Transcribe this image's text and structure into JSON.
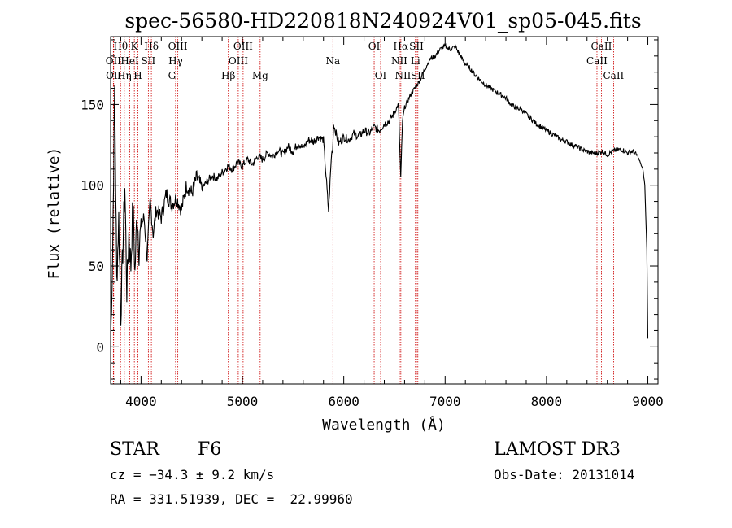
{
  "chart_data": {
    "type": "line",
    "title": "spec-56580-HD220818N240924V01_sp05-045.fits",
    "xlabel": "Wavelength (Å)",
    "ylabel": "Flux (relative)",
    "xlim": [
      3700,
      9100
    ],
    "ylim": [
      -23,
      192
    ],
    "x_ticks": [
      4000,
      5000,
      6000,
      7000,
      8000,
      9000
    ],
    "y_ticks": [
      0,
      50,
      100,
      150
    ],
    "series": [
      {
        "name": "spectrum",
        "x": [
          3700,
          3720,
          3740,
          3760,
          3780,
          3800,
          3820,
          3840,
          3860,
          3880,
          3900,
          3920,
          3940,
          3960,
          3980,
          4000,
          4030,
          4060,
          4090,
          4120,
          4150,
          4200,
          4250,
          4300,
          4350,
          4400,
          4450,
          4500,
          4550,
          4600,
          4650,
          4700,
          4750,
          4800,
          4860,
          4900,
          4950,
          5000,
          5050,
          5100,
          5150,
          5200,
          5250,
          5300,
          5350,
          5400,
          5450,
          5500,
          5550,
          5600,
          5650,
          5700,
          5750,
          5800,
          5850,
          5880,
          5890,
          5900,
          5950,
          6000,
          6050,
          6100,
          6150,
          6200,
          6250,
          6300,
          6350,
          6400,
          6450,
          6500,
          6540,
          6562,
          6580,
          6600,
          6650,
          6700,
          6750,
          6800,
          6850,
          6900,
          6950,
          7000,
          7050,
          7100,
          7150,
          7200,
          7250,
          7300,
          7350,
          7400,
          7450,
          7500,
          7550,
          7600,
          7650,
          7700,
          7750,
          7800,
          7850,
          7900,
          7950,
          8000,
          8050,
          8100,
          8150,
          8200,
          8250,
          8300,
          8350,
          8400,
          8450,
          8500,
          8550,
          8600,
          8650,
          8700,
          8750,
          8800,
          8850,
          8900,
          8950,
          8970,
          8990,
          9000
        ],
        "y": [
          0,
          60,
          160,
          40,
          80,
          20,
          60,
          100,
          35,
          70,
          50,
          90,
          45,
          85,
          60,
          75,
          80,
          55,
          90,
          70,
          85,
          80,
          95,
          88,
          92,
          85,
          100,
          95,
          105,
          98,
          102,
          106,
          104,
          108,
          112,
          110,
          114,
          112,
          116,
          113,
          118,
          116,
          120,
          118,
          122,
          119,
          124,
          121,
          126,
          123,
          128,
          127,
          130,
          128,
          84,
          120,
          122,
          138,
          126,
          130,
          128,
          132,
          130,
          134,
          132,
          136,
          134,
          138,
          140,
          145,
          150,
          105,
          140,
          148,
          155,
          160,
          165,
          172,
          178,
          180,
          184,
          186,
          184,
          186,
          180,
          175,
          172,
          168,
          165,
          162,
          160,
          158,
          156,
          154,
          150,
          148,
          147,
          144,
          141,
          138,
          136,
          134,
          132,
          130,
          128,
          127,
          125,
          124,
          122,
          121,
          120,
          120,
          121,
          119,
          121,
          122,
          122,
          120,
          121,
          118,
          110,
          100,
          60,
          5
        ]
      }
    ],
    "line_markers": [
      {
        "label": "Hθ",
        "x": 3798,
        "row": 1
      },
      {
        "label": "OII",
        "x": 3727,
        "row": 2
      },
      {
        "label": "OII",
        "x": 3730,
        "row": 3
      },
      {
        "label": "Hη",
        "x": 3835,
        "row": 3
      },
      {
        "label": "HeI",
        "x": 3889,
        "row": 2
      },
      {
        "label": "K",
        "x": 3934,
        "row": 1
      },
      {
        "label": "H",
        "x": 3969,
        "row": 3
      },
      {
        "label": "SII",
        "x": 4072,
        "row": 2
      },
      {
        "label": "Hδ",
        "x": 4102,
        "row": 1
      },
      {
        "label": "G",
        "x": 4305,
        "row": 3
      },
      {
        "label": "OIII",
        "x": 4363,
        "row": 1
      },
      {
        "label": "Hγ",
        "x": 4341,
        "row": 2
      },
      {
        "label": "Hβ",
        "x": 4861,
        "row": 3
      },
      {
        "label": "OIII",
        "x": 5007,
        "row": 1
      },
      {
        "label": "OIII",
        "x": 4959,
        "row": 2
      },
      {
        "label": "Mg",
        "x": 5175,
        "row": 3
      },
      {
        "label": "Na",
        "x": 5893,
        "row": 2
      },
      {
        "label": "OI",
        "x": 6300,
        "row": 1
      },
      {
        "label": "OI",
        "x": 6364,
        "row": 3
      },
      {
        "label": "Hα",
        "x": 6563,
        "row": 1
      },
      {
        "label": "NII",
        "x": 6548,
        "row": 2
      },
      {
        "label": "NII",
        "x": 6584,
        "row": 3
      },
      {
        "label": "SII",
        "x": 6717,
        "row": 1
      },
      {
        "label": "Li",
        "x": 6707,
        "row": 2
      },
      {
        "label": "SII",
        "x": 6731,
        "row": 3
      },
      {
        "label": "CaII",
        "x": 8542,
        "row": 1
      },
      {
        "label": "CaII",
        "x": 8498,
        "row": 2
      },
      {
        "label": "CaII",
        "x": 8662,
        "row": 3
      }
    ]
  },
  "info": {
    "class_label": "STAR",
    "subclass": "F6",
    "survey": "LAMOST DR3",
    "cz": "cz = −34.3 ± 9.2 km/s",
    "obs_date": "Obs-Date: 20131014",
    "coords": "RA = 331.51939, DEC =  22.99960"
  },
  "colors": {
    "spectrum": "#000000",
    "marker_line": "#cc0000",
    "axis": "#000000"
  }
}
